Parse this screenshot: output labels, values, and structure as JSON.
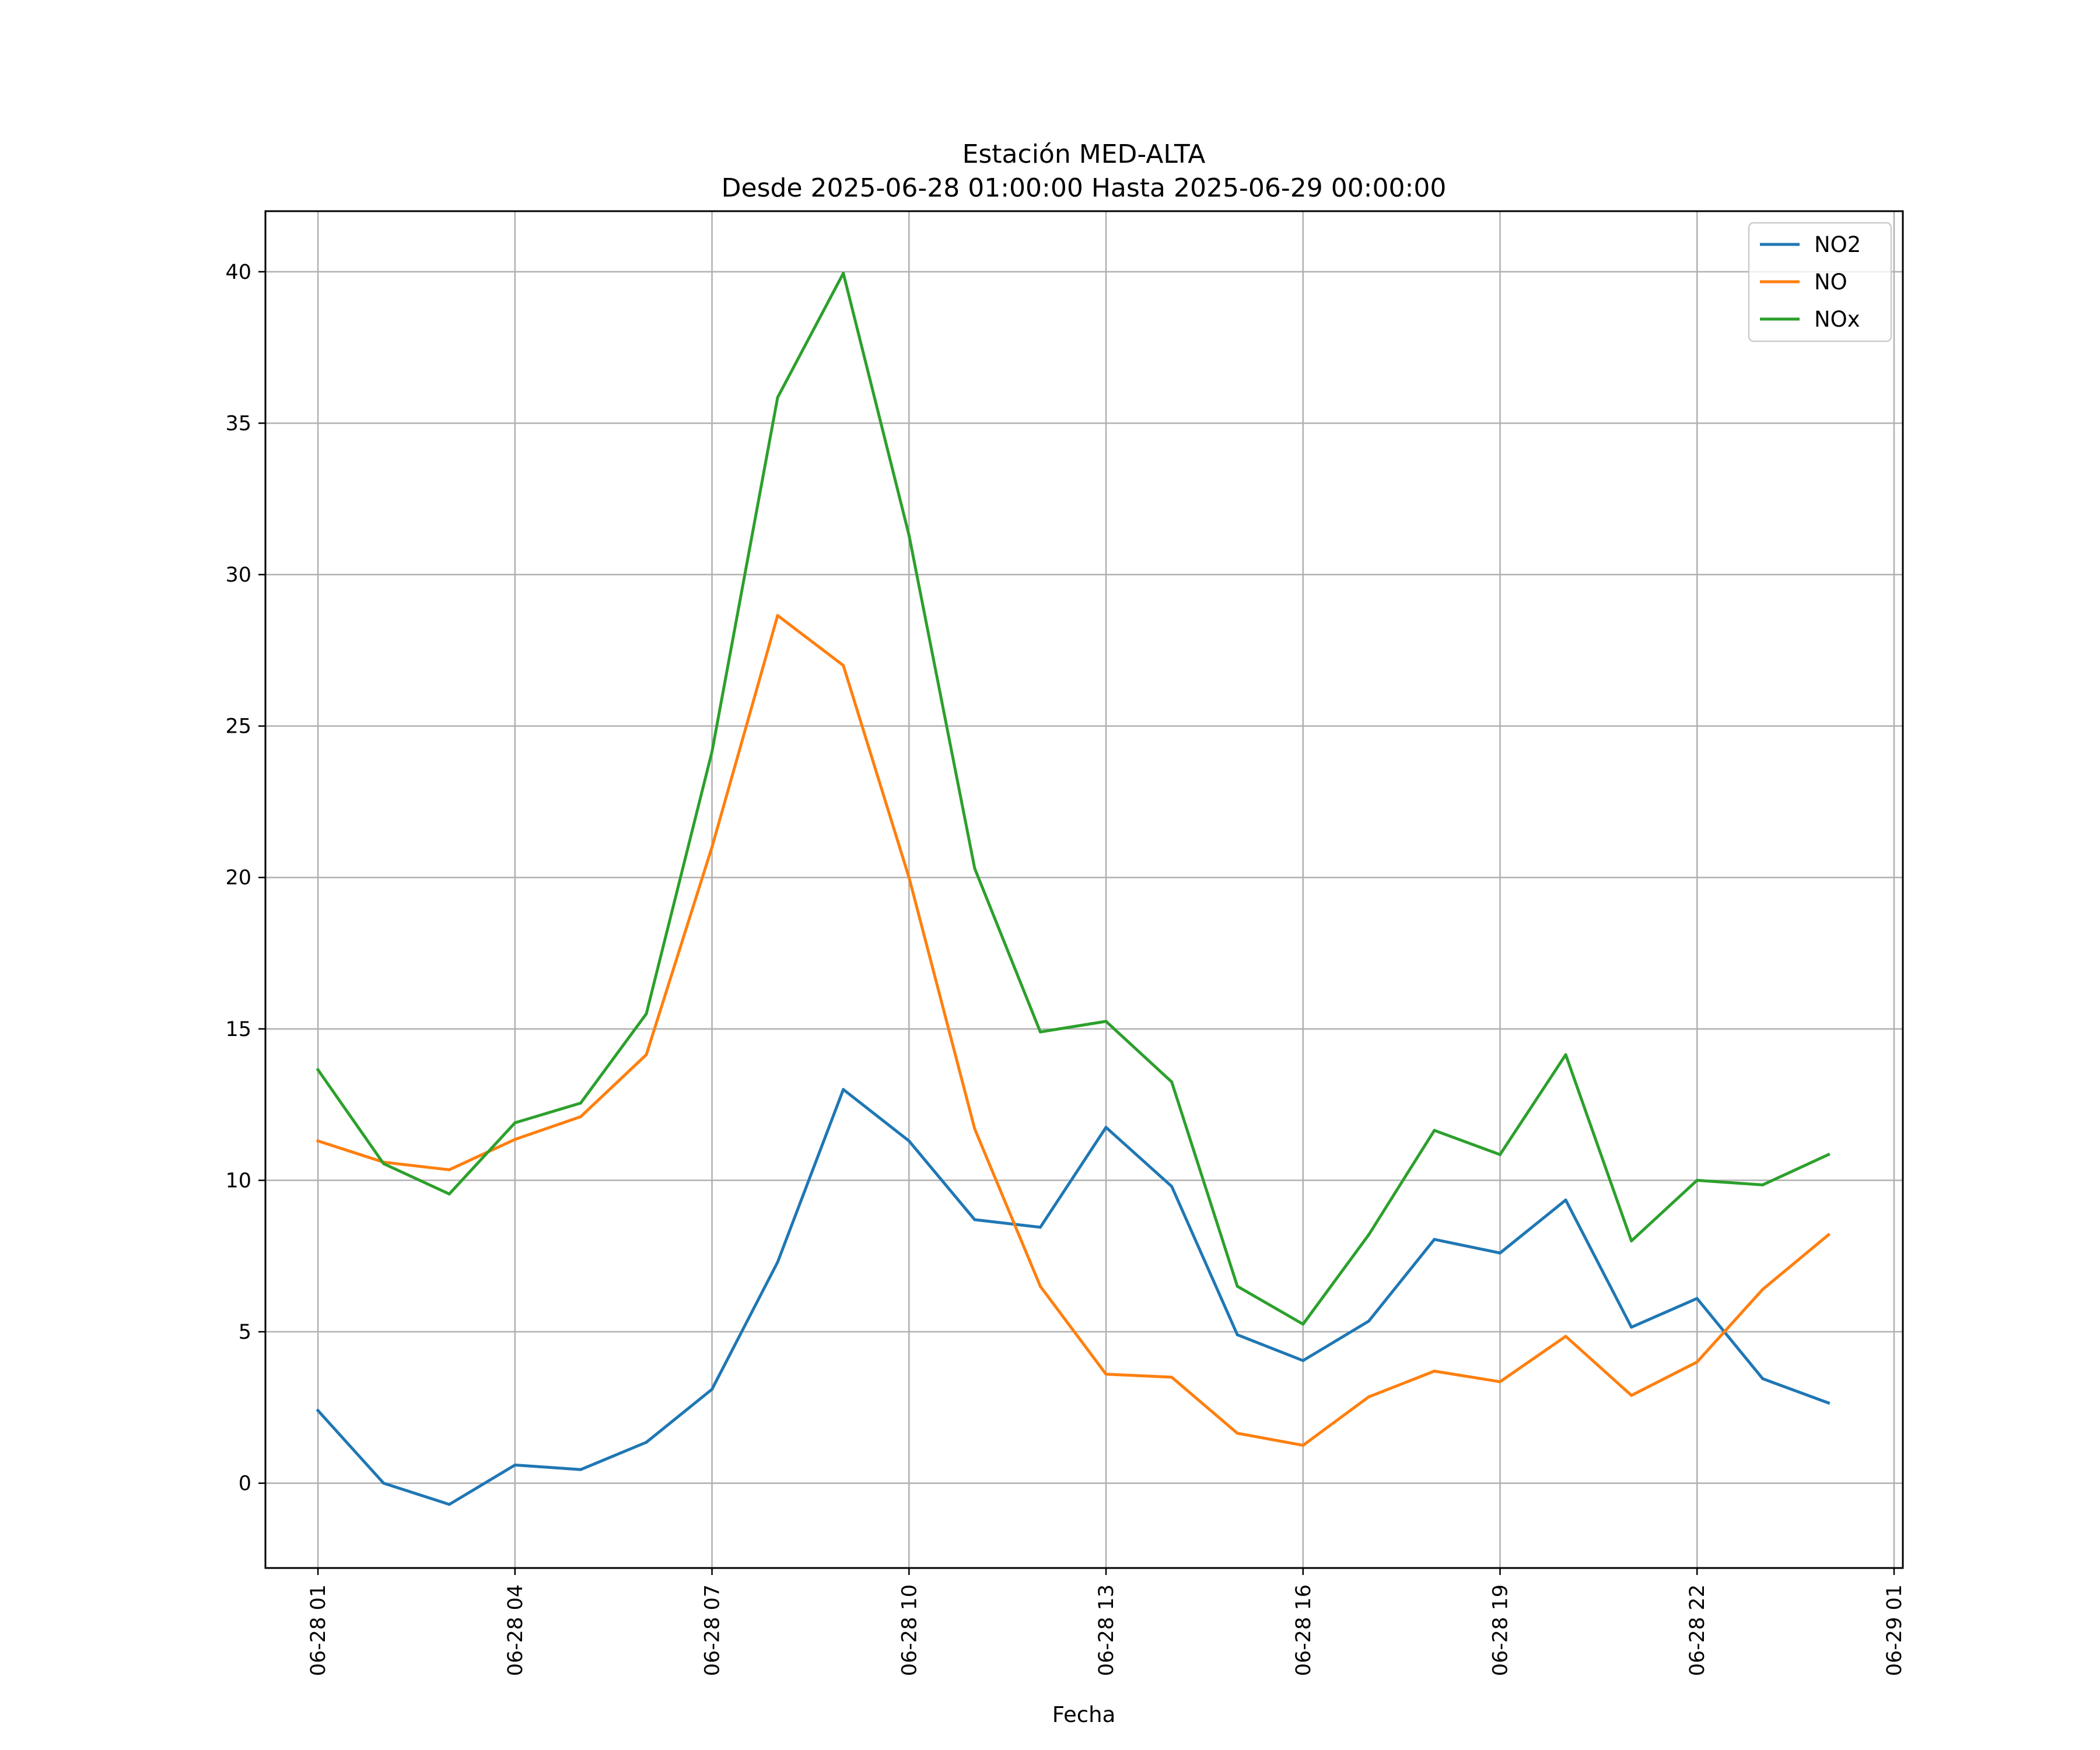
{
  "chart_data": {
    "type": "line",
    "title": "Estación MED-ALTA",
    "subtitle": "Desde 2025-06-28 01:00:00 Hasta 2025-06-29 00:00:00",
    "xlabel": "Fecha",
    "ylabel": "",
    "x": [
      "2025-06-28 01:00",
      "2025-06-28 02:00",
      "2025-06-28 03:00",
      "2025-06-28 04:00",
      "2025-06-28 05:00",
      "2025-06-28 06:00",
      "2025-06-28 07:00",
      "2025-06-28 08:00",
      "2025-06-28 09:00",
      "2025-06-28 10:00",
      "2025-06-28 11:00",
      "2025-06-28 12:00",
      "2025-06-28 13:00",
      "2025-06-28 14:00",
      "2025-06-28 15:00",
      "2025-06-28 16:00",
      "2025-06-28 17:00",
      "2025-06-28 18:00",
      "2025-06-28 19:00",
      "2025-06-28 20:00",
      "2025-06-28 21:00",
      "2025-06-28 22:00",
      "2025-06-28 23:00",
      "2025-06-29 00:00"
    ],
    "xlim": [
      "2025-06-28 00:12",
      "2025-06-29 01:08"
    ],
    "ylim": [
      -2.8,
      42
    ],
    "x_ticks": [
      "06-28 01",
      "06-28 04",
      "06-28 07",
      "06-28 10",
      "06-28 13",
      "06-28 16",
      "06-28 19",
      "06-28 22",
      "06-29 01"
    ],
    "y_ticks": [
      0,
      5,
      10,
      15,
      20,
      25,
      30,
      35,
      40
    ],
    "y_tick_labels": [
      "0",
      "5",
      "10",
      "15",
      "20",
      "25",
      "30",
      "35",
      "40"
    ],
    "grid": true,
    "legend_position": "top-right",
    "series": [
      {
        "name": "NO2",
        "color": "#1f77b4",
        "values": [
          2.4,
          0.0,
          -0.7,
          0.6,
          0.45,
          1.35,
          3.1,
          7.3,
          13.0,
          11.3,
          8.7,
          8.45,
          11.75,
          9.8,
          4.9,
          4.05,
          5.35,
          8.05,
          7.6,
          9.35,
          5.15,
          6.1,
          3.45,
          2.65
        ]
      },
      {
        "name": "NO",
        "color": "#ff7f0e",
        "values": [
          11.3,
          10.6,
          10.35,
          11.35,
          12.1,
          14.15,
          21.0,
          28.65,
          27.0,
          20.0,
          11.7,
          6.5,
          3.6,
          3.5,
          1.65,
          1.25,
          2.85,
          3.7,
          3.35,
          4.85,
          2.9,
          4.0,
          6.4,
          8.2
        ]
      },
      {
        "name": "NOx",
        "color": "#2ca02c",
        "values": [
          13.65,
          10.55,
          9.55,
          11.9,
          12.55,
          15.5,
          24.15,
          35.85,
          39.95,
          31.3,
          20.3,
          14.9,
          15.25,
          13.25,
          6.5,
          5.25,
          8.2,
          11.65,
          10.85,
          14.15,
          8.0,
          10.0,
          9.85,
          10.85
        ]
      }
    ]
  }
}
